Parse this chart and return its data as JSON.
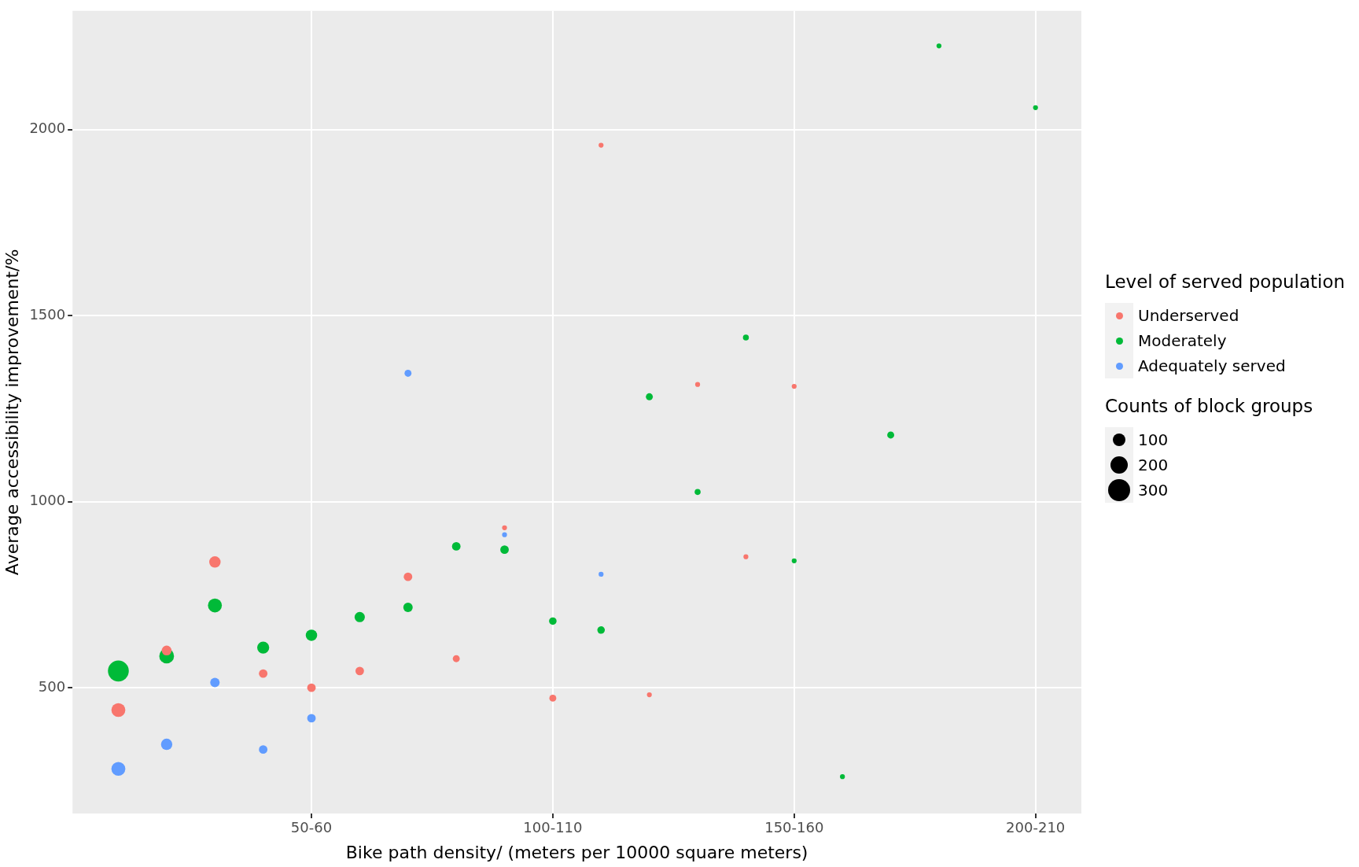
{
  "chart_data": {
    "type": "bubble",
    "xlabel": "Bike path density/ (meters per 10000 square meters)",
    "ylabel": "Average accessibility improvement/%",
    "legend_title": "Level of served population",
    "annotations": [
      "Counts of block groups"
    ],
    "categories": [
      null,
      null,
      null,
      null,
      "50-60",
      null,
      null,
      null,
      null,
      "100-110",
      null,
      null,
      null,
      null,
      "150-160",
      null,
      null,
      null,
      null,
      "200-210"
    ],
    "series": [
      {
        "name": "Underserved",
        "color": "#f8766d",
        "values": [
          440,
          600,
          838,
          538,
          500,
          545,
          798,
          578,
          930,
          472,
          1958,
          481,
          1315,
          852,
          1310,
          null,
          null,
          null,
          null,
          null
        ],
        "sizes": [
          120,
          60,
          80,
          45,
          45,
          45,
          45,
          30,
          15,
          30,
          15,
          15,
          15,
          15,
          15,
          null,
          null,
          null,
          null,
          null
        ]
      },
      {
        "name": "Moderately",
        "color": "#00ba38",
        "values": [
          545,
          585,
          721,
          608,
          641,
          690,
          716,
          880,
          871,
          679,
          655,
          1282,
          1026,
          1441,
          841,
          261,
          1179,
          2225,
          null,
          2059
        ],
        "sizes": [
          270,
          135,
          120,
          90,
          80,
          65,
          55,
          45,
          45,
          35,
          35,
          30,
          22,
          22,
          15,
          15,
          30,
          15,
          null,
          15
        ]
      },
      {
        "name": "Adequately served",
        "color": "#619cff",
        "values": [
          282,
          348,
          514,
          334,
          418,
          null,
          1345,
          null,
          911,
          null,
          805,
          null,
          null,
          null,
          null,
          null,
          null,
          null,
          null,
          null
        ],
        "sizes": [
          120,
          80,
          55,
          45,
          45,
          null,
          30,
          null,
          15,
          null,
          15,
          null,
          null,
          null,
          null,
          null,
          null,
          null,
          null,
          null
        ]
      }
    ],
    "size_legend": [
      100,
      200,
      300
    ],
    "ylim": [
      162,
      2319
    ],
    "yticks": [
      500,
      1000,
      1500,
      2000
    ],
    "grid": true,
    "legend": "right"
  }
}
